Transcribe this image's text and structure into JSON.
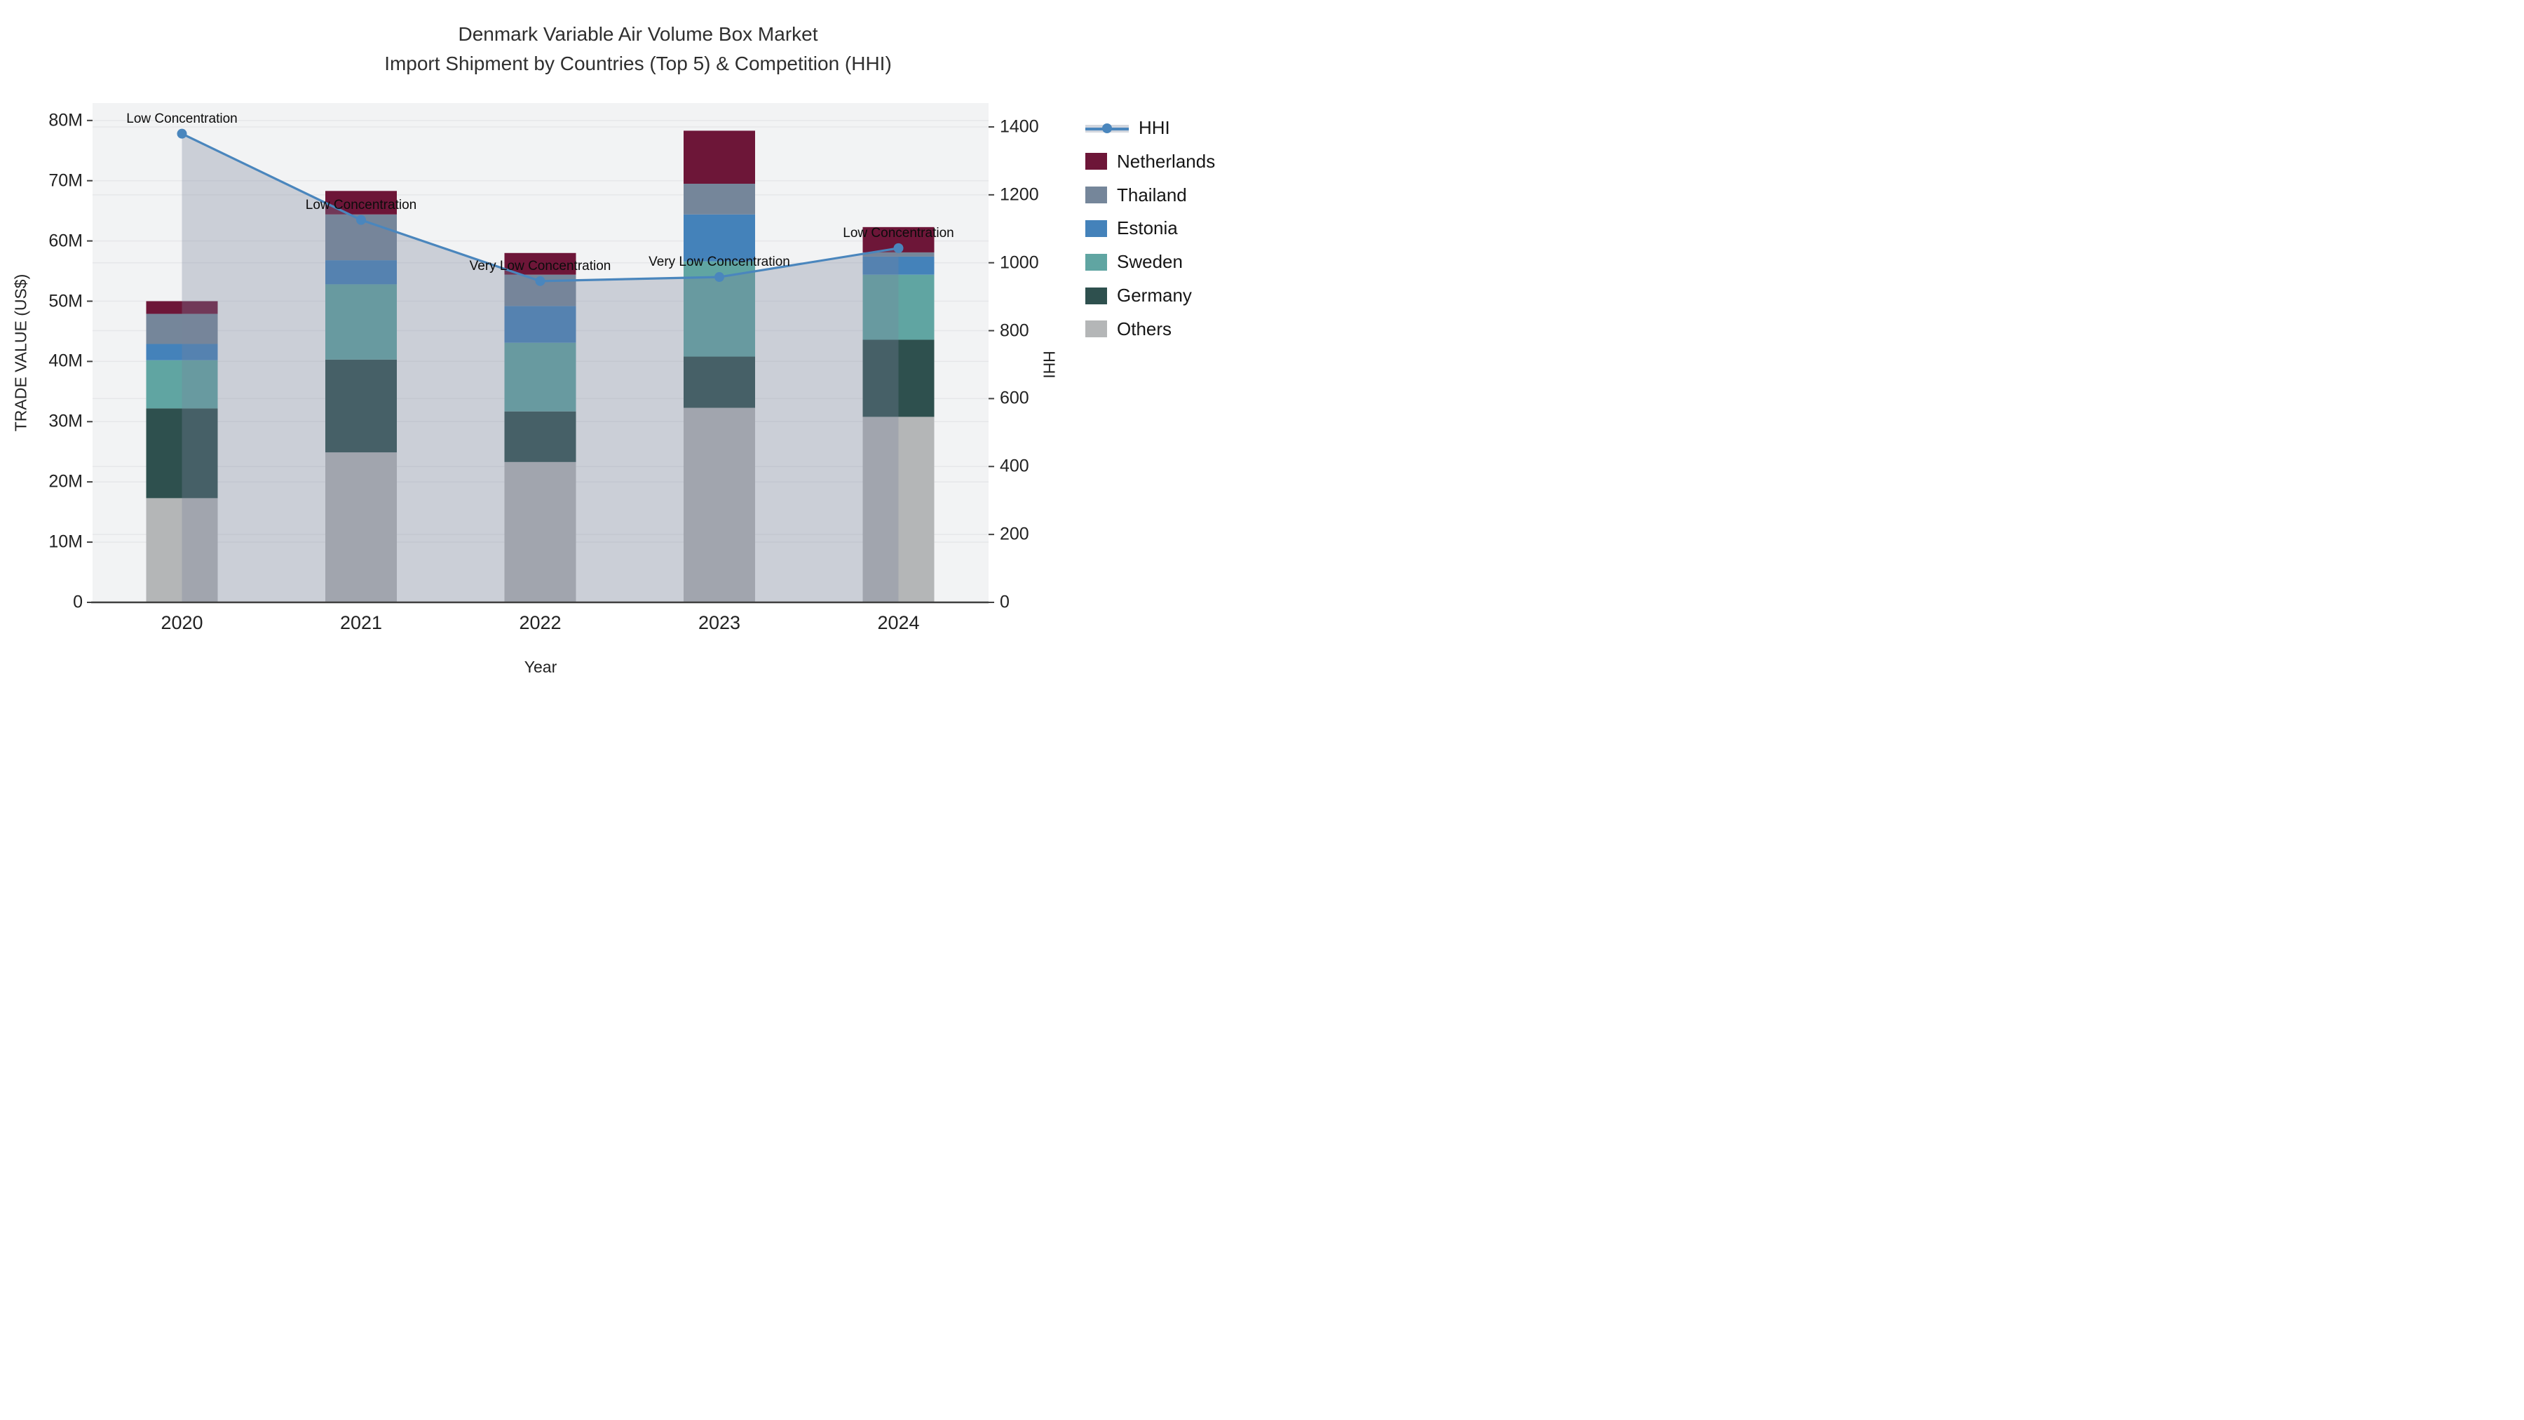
{
  "title": {
    "line1": "Denmark Variable Air Volume Box Market",
    "line2": "Import Shipment by Countries (Top 5) & Competition (HHI)"
  },
  "axes": {
    "left": {
      "title": "TRADE VALUE (US$)",
      "tick_labels": [
        "0",
        "10M",
        "20M",
        "30M",
        "40M",
        "50M",
        "60M",
        "70M",
        "80M"
      ],
      "tick_values_millions": [
        0,
        10,
        20,
        30,
        40,
        50,
        60,
        70,
        80
      ]
    },
    "right": {
      "title": "HHI",
      "tick_labels": [
        "0",
        "200",
        "400",
        "600",
        "800",
        "1000",
        "1200",
        "1400"
      ],
      "tick_values": [
        0,
        200,
        400,
        600,
        800,
        1000,
        1200,
        1400
      ]
    },
    "x": {
      "title": "Year",
      "tick_labels": [
        "2020",
        "2021",
        "2022",
        "2023",
        "2024"
      ]
    }
  },
  "legend": {
    "items": [
      {
        "label": "HHI",
        "kind": "line",
        "color": "#4a86bd"
      },
      {
        "label": "Netherlands",
        "kind": "swatch",
        "color": "#6d1638"
      },
      {
        "label": "Thailand",
        "kind": "swatch",
        "color": "#75869a"
      },
      {
        "label": "Estonia",
        "kind": "swatch",
        "color": "#4482ba"
      },
      {
        "label": "Sweden",
        "kind": "swatch",
        "color": "#60a5a2"
      },
      {
        "label": "Germany",
        "kind": "swatch",
        "color": "#2e504e"
      },
      {
        "label": "Others",
        "kind": "swatch",
        "color": "#b4b6b7"
      }
    ]
  },
  "chart_data": {
    "type": "bar+line",
    "title": "Denmark Variable Air Volume Box Market — Import Shipment by Countries (Top 5) & Competition (HHI)",
    "categories": [
      "2020",
      "2021",
      "2022",
      "2023",
      "2024"
    ],
    "bar_unit": "million US$",
    "stack_order_bottom_to_top": [
      "Others",
      "Germany",
      "Sweden",
      "Estonia",
      "Thailand",
      "Netherlands"
    ],
    "series": [
      {
        "name": "Others",
        "color": "#b4b6b7",
        "values": [
          17.3,
          24.9,
          23.3,
          32.3,
          30.8
        ]
      },
      {
        "name": "Germany",
        "color": "#2e504e",
        "values": [
          14.9,
          15.4,
          8.4,
          8.5,
          12.8
        ]
      },
      {
        "name": "Sweden",
        "color": "#60a5a2",
        "values": [
          8.0,
          12.5,
          11.4,
          15.8,
          10.8
        ]
      },
      {
        "name": "Estonia",
        "color": "#4482ba",
        "values": [
          2.7,
          4.0,
          6.1,
          7.8,
          3.0
        ]
      },
      {
        "name": "Thailand",
        "color": "#75869a",
        "values": [
          5.0,
          7.6,
          5.2,
          5.1,
          0.7
        ]
      },
      {
        "name": "Netherlands",
        "color": "#6d1638",
        "values": [
          2.1,
          3.9,
          3.6,
          8.8,
          4.2
        ]
      }
    ],
    "bar_totals_millions": [
      50.0,
      68.3,
      58.0,
      78.3,
      62.3
    ],
    "line_series": {
      "name": "HHI",
      "axis": "right",
      "color": "#4a86bd",
      "fill_color": "rgba(122,130,155,0.32)",
      "values": [
        1380,
        1126,
        946,
        958,
        1043
      ]
    },
    "annotations": [
      {
        "category": "2020",
        "text": "Low Concentration"
      },
      {
        "category": "2021",
        "text": "Low Concentration"
      },
      {
        "category": "2022",
        "text": "Very Low Concentration"
      },
      {
        "category": "2023",
        "text": "Very Low Concentration"
      },
      {
        "category": "2024",
        "text": "Low Concentration"
      }
    ],
    "xlabel": "Year",
    "ylabel_left": "TRADE VALUE (US$)",
    "ylabel_right": "HHI",
    "ylim_left_millions": [
      0,
      82.9
    ],
    "ylim_right": [
      0,
      1470
    ],
    "grid": true,
    "legend_position": "right"
  },
  "colors": {
    "paper_bg": "#ffffff",
    "plot_bg": "#f2f3f4",
    "grid": "#e6e7e9",
    "axis_line": "#3f3f3f",
    "text": "#222222"
  }
}
